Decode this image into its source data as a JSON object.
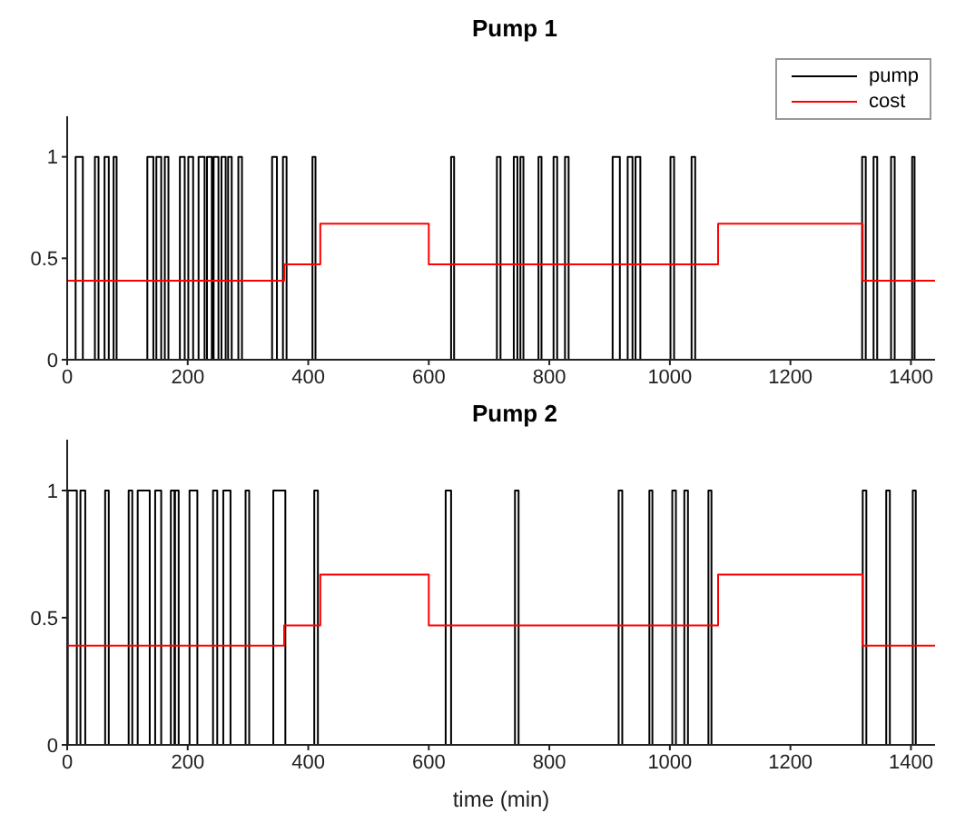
{
  "chart_data": [
    {
      "type": "step",
      "title": "Pump 1",
      "xlim": [
        0,
        1440
      ],
      "ylim": [
        0,
        1.2
      ],
      "xticks": [
        0,
        200,
        400,
        600,
        800,
        1000,
        1200,
        1400
      ],
      "yticks": [
        0,
        0.5,
        1
      ],
      "grid": false,
      "legend": "top right",
      "marker": "none",
      "line_style": "solid",
      "series": [
        {
          "name": "pump",
          "color": "#000000",
          "x": [
            0,
            14,
            26,
            46,
            52,
            62,
            69,
            77,
            82,
            133,
            143,
            148,
            156,
            162,
            168,
            187,
            195,
            201,
            209,
            218,
            228,
            232,
            240,
            243,
            251,
            256,
            263,
            267,
            273,
            284,
            290,
            340,
            348,
            358,
            364,
            407,
            412,
            637,
            642,
            713,
            719,
            741,
            747,
            752,
            757,
            782,
            787,
            807,
            813,
            826,
            832,
            905,
            917,
            930,
            938,
            943,
            951,
            1001,
            1007,
            1036,
            1042,
            1319,
            1325,
            1338,
            1344,
            1367,
            1373,
            1402,
            1406,
            1440
          ],
          "values": [
            0,
            1,
            0,
            1,
            0,
            1,
            0,
            1,
            0,
            1,
            0,
            1,
            0,
            1,
            0,
            1,
            0,
            1,
            0,
            1,
            0,
            1,
            0,
            1,
            0,
            1,
            0,
            1,
            0,
            1,
            0,
            1,
            0,
            1,
            0,
            1,
            0,
            1,
            0,
            1,
            0,
            1,
            0,
            1,
            0,
            1,
            0,
            1,
            0,
            1,
            0,
            1,
            0,
            1,
            0,
            1,
            0,
            1,
            0,
            1,
            0,
            1,
            0,
            1,
            0,
            1,
            0,
            1,
            0,
            0
          ]
        },
        {
          "name": "cost",
          "color": "#ff0000",
          "x": [
            0,
            360,
            420,
            600,
            1080,
            1320,
            1440
          ],
          "values": [
            0.39,
            0.47,
            0.67,
            0.47,
            0.67,
            0.39,
            0.39
          ]
        }
      ]
    },
    {
      "type": "step",
      "title": "Pump 2",
      "xlabel": "time (min)",
      "xlim": [
        0,
        1440
      ],
      "ylim": [
        0,
        1.2
      ],
      "xticks": [
        0,
        200,
        400,
        600,
        800,
        1000,
        1200,
        1400
      ],
      "yticks": [
        0,
        0.5,
        1
      ],
      "grid": false,
      "legend": false,
      "marker": "none",
      "line_style": "solid",
      "series": [
        {
          "color": "#000000",
          "x": [
            0,
            1,
            16,
            22,
            30,
            63,
            69,
            102,
            108,
            117,
            137,
            146,
            156,
            172,
            178,
            179,
            185,
            203,
            216,
            242,
            249,
            259,
            271,
            296,
            302,
            342,
            362,
            410,
            416,
            628,
            637,
            743,
            749,
            915,
            921,
            966,
            971,
            1004,
            1010,
            1024,
            1030,
            1064,
            1069,
            1320,
            1326,
            1359,
            1365,
            1403,
            1408,
            1440
          ],
          "values": [
            0,
            1,
            0,
            1,
            0,
            1,
            0,
            1,
            0,
            1,
            0,
            1,
            0,
            1,
            0,
            1,
            0,
            1,
            0,
            1,
            0,
            1,
            0,
            1,
            0,
            1,
            0,
            1,
            0,
            1,
            0,
            1,
            0,
            1,
            0,
            1,
            0,
            1,
            0,
            1,
            0,
            1,
            0,
            1,
            0,
            1,
            0,
            1,
            0,
            0
          ]
        },
        {
          "color": "#ff0000",
          "x": [
            0,
            360,
            420,
            600,
            1080,
            1320,
            1440
          ],
          "values": [
            0.39,
            0.47,
            0.67,
            0.47,
            0.67,
            0.39,
            0.39
          ]
        }
      ]
    }
  ]
}
